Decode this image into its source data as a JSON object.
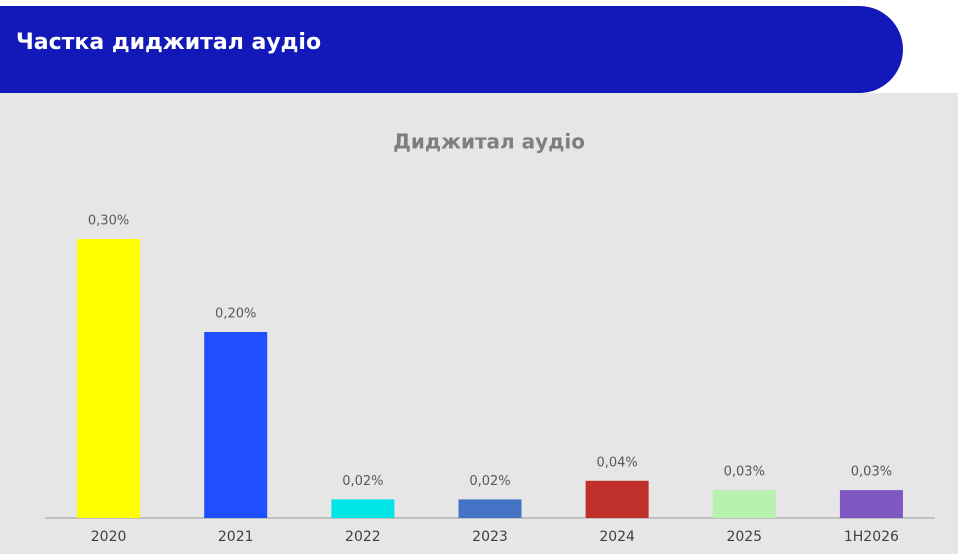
{
  "header": {
    "title": "Частка диджитал аудіо"
  },
  "chart_data": {
    "type": "bar",
    "title": "Диджитал аудіо",
    "categories": [
      "2020",
      "2021",
      "2022",
      "2023",
      "2024",
      "2025",
      "1H2026"
    ],
    "values": [
      0.3,
      0.2,
      0.02,
      0.02,
      0.04,
      0.03,
      0.03
    ],
    "value_labels": [
      "0,30%",
      "0,20%",
      "0,02%",
      "0,02%",
      "0,04%",
      "0,03%",
      "0,03%"
    ],
    "colors": [
      "#ffff00",
      "#1f4fff",
      "#00e5e5",
      "#4472c4",
      "#c0302a",
      "#b8f0b0",
      "#7e57c2"
    ]
  }
}
